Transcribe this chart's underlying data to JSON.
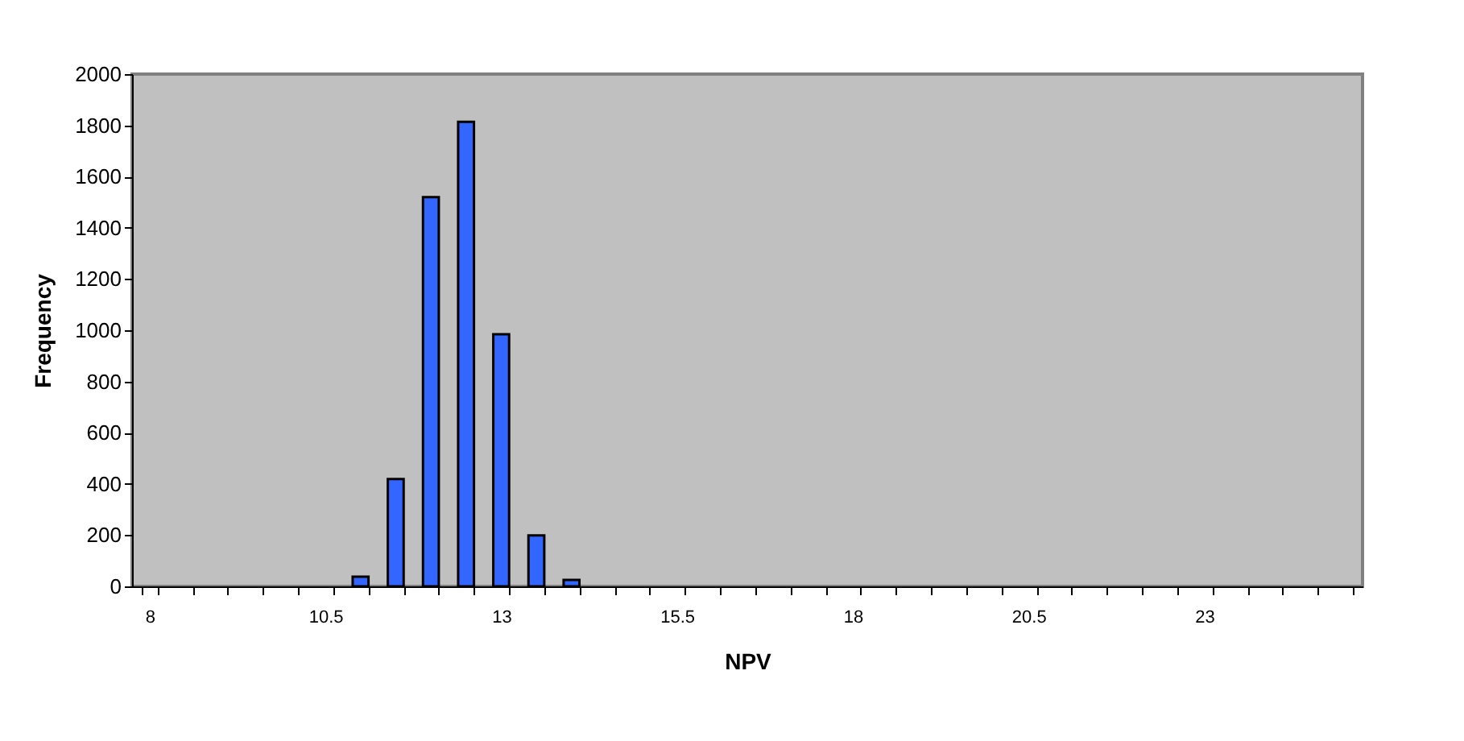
{
  "chart_data": {
    "type": "bar",
    "xlabel": "NPV",
    "ylabel": "Frequency",
    "categories": [
      "8",
      null,
      null,
      null,
      null,
      "10.5",
      null,
      null,
      null,
      null,
      "13",
      null,
      null,
      null,
      null,
      "15.5",
      null,
      null,
      null,
      null,
      "18",
      null,
      null,
      null,
      null,
      "20.5",
      null,
      null,
      null,
      null,
      "23",
      null,
      null,
      null,
      null
    ],
    "values": [
      0,
      0,
      0,
      0,
      0,
      0,
      38,
      419,
      1520,
      1814,
      984,
      199,
      25,
      0,
      0,
      0,
      0,
      0,
      0,
      0,
      0,
      0,
      0,
      0,
      0,
      0,
      0,
      0,
      0,
      0,
      0,
      0,
      0,
      0,
      0
    ],
    "color": "#3366ff",
    "ylim": [
      0,
      2000
    ],
    "yticks": [
      0,
      200,
      400,
      600,
      800,
      1000,
      1200,
      1400,
      1600,
      1800,
      2000
    ],
    "grid": false
  }
}
